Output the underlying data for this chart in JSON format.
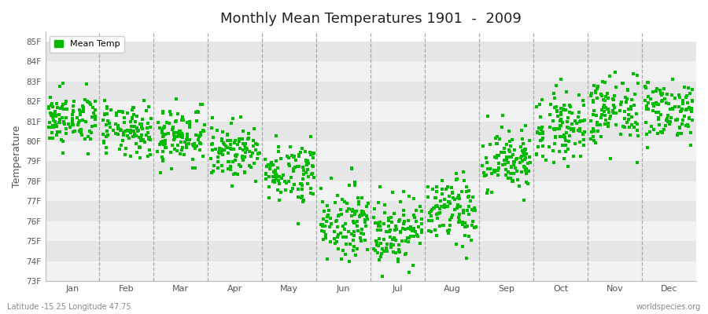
{
  "title": "Monthly Mean Temperatures 1901  -  2009",
  "ylabel": "Temperature",
  "xlabel_bottom": "Latitude -15.25 Longitude 47.75",
  "watermark": "worldspecies.org",
  "legend_label": "Mean Temp",
  "dot_color": "#00bb00",
  "background_color": "#ffffff",
  "plot_bg_color": "#ffffff",
  "stripe_color_light": "#f2f2f2",
  "stripe_color_dark": "#e6e6e6",
  "ylim": [
    73,
    85.5
  ],
  "ytick_labels": [
    "73F",
    "74F",
    "75F",
    "76F",
    "77F",
    "78F",
    "79F",
    "80F",
    "81F",
    "82F",
    "83F",
    "84F",
    "85F"
  ],
  "ytick_values": [
    73,
    74,
    75,
    76,
    77,
    78,
    79,
    80,
    81,
    82,
    83,
    84,
    85
  ],
  "month_names": [
    "Jan",
    "Feb",
    "Mar",
    "Apr",
    "May",
    "Jun",
    "Jul",
    "Aug",
    "Sep",
    "Oct",
    "Nov",
    "Dec"
  ],
  "month_positions": [
    0.5,
    1.5,
    2.5,
    3.5,
    4.5,
    5.5,
    6.5,
    7.5,
    8.5,
    9.5,
    10.5,
    11.5
  ],
  "num_years": 109,
  "seed": 42,
  "mean_temps_f": [
    81.1,
    80.5,
    80.3,
    79.5,
    78.5,
    76.0,
    75.5,
    76.5,
    79.0,
    80.8,
    81.5,
    81.6
  ],
  "std_temps": [
    0.65,
    0.65,
    0.75,
    0.65,
    0.75,
    0.9,
    0.9,
    0.85,
    0.85,
    0.85,
    0.9,
    0.75
  ]
}
